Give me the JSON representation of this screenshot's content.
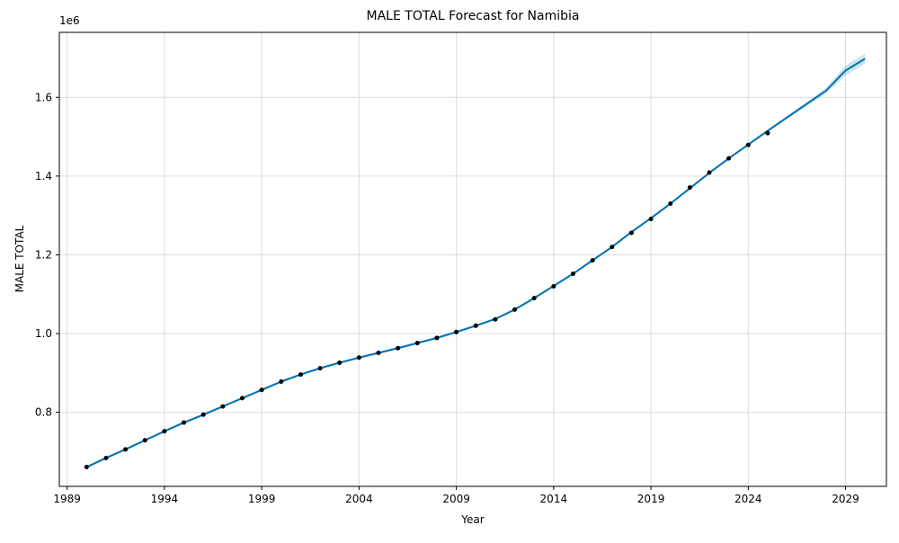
{
  "chart_data": {
    "type": "line",
    "title": "MALE TOTAL Forecast for Namibia",
    "xlabel": "Year",
    "ylabel": "MALE TOTAL",
    "y_offset_label": "1e6",
    "xlim": [
      1988.6,
      2031.1
    ],
    "ylim": [
      0.612,
      1.765
    ],
    "grid": true,
    "colors": {
      "forecast_line": "#0072b2",
      "uncertainty_band": "#0072b2",
      "observed_points": "#000000",
      "grid": "#dcdcdc"
    },
    "x_ticks": [
      {
        "value": 1989,
        "label": "1989"
      },
      {
        "value": 1994,
        "label": "1994"
      },
      {
        "value": 1999,
        "label": "1999"
      },
      {
        "value": 2004,
        "label": "2004"
      },
      {
        "value": 2009,
        "label": "2009"
      },
      {
        "value": 2014,
        "label": "2014"
      },
      {
        "value": 2019,
        "label": "2019"
      },
      {
        "value": 2024,
        "label": "2024"
      },
      {
        "value": 2029,
        "label": "2029"
      }
    ],
    "y_ticks": [
      {
        "value": 0.8,
        "label": "0.8"
      },
      {
        "value": 1.0,
        "label": "1.0"
      },
      {
        "value": 1.2,
        "label": "1.2"
      },
      {
        "value": 1.4,
        "label": "1.4"
      },
      {
        "value": 1.6,
        "label": "1.6"
      }
    ],
    "series": [
      {
        "role": "observed",
        "style": "points",
        "x": [
          1990,
          1991,
          1992,
          1993,
          1994,
          1995,
          1996,
          1997,
          1998,
          1999,
          2000,
          2001,
          2002,
          2003,
          2004,
          2005,
          2006,
          2007,
          2008,
          2009,
          2010,
          2011,
          2012,
          2013,
          2014,
          2015,
          2016,
          2017,
          2018,
          2019,
          2020,
          2021,
          2022,
          2023,
          2024,
          2025
        ],
        "y": [
          0.661,
          0.684,
          0.706,
          0.729,
          0.752,
          0.774,
          0.794,
          0.815,
          0.836,
          0.857,
          0.878,
          0.896,
          0.912,
          0.926,
          0.939,
          0.951,
          0.963,
          0.976,
          0.989,
          1.004,
          1.02,
          1.036,
          1.061,
          1.09,
          1.12,
          1.152,
          1.186,
          1.22,
          1.256,
          1.291,
          1.33,
          1.371,
          1.409,
          1.445,
          1.479,
          1.509
        ]
      },
      {
        "role": "forecast",
        "style": "line",
        "x": [
          1990,
          1991,
          1992,
          1993,
          1994,
          1995,
          1996,
          1997,
          1998,
          1999,
          2000,
          2001,
          2002,
          2003,
          2004,
          2005,
          2006,
          2007,
          2008,
          2009,
          2010,
          2011,
          2012,
          2013,
          2014,
          2015,
          2016,
          2017,
          2018,
          2019,
          2020,
          2021,
          2022,
          2023,
          2024,
          2025,
          2026,
          2027,
          2028,
          2029,
          2030
        ],
        "y": [
          0.661,
          0.684,
          0.706,
          0.729,
          0.752,
          0.774,
          0.794,
          0.815,
          0.836,
          0.857,
          0.878,
          0.896,
          0.912,
          0.926,
          0.939,
          0.951,
          0.963,
          0.976,
          0.989,
          1.004,
          1.02,
          1.037,
          1.061,
          1.09,
          1.121,
          1.152,
          1.186,
          1.22,
          1.258,
          1.293,
          1.33,
          1.369,
          1.408,
          1.445,
          1.48,
          1.515,
          1.549,
          1.583,
          1.617,
          1.668,
          1.698
        ],
        "lower": [
          0.658,
          0.681,
          0.703,
          0.726,
          0.749,
          0.771,
          0.791,
          0.812,
          0.833,
          0.854,
          0.875,
          0.893,
          0.909,
          0.923,
          0.936,
          0.948,
          0.96,
          0.973,
          0.986,
          1.001,
          1.017,
          1.034,
          1.058,
          1.087,
          1.118,
          1.149,
          1.183,
          1.217,
          1.255,
          1.29,
          1.327,
          1.366,
          1.405,
          1.442,
          1.477,
          1.512,
          1.545,
          1.578,
          1.61,
          1.655,
          1.685
        ],
        "upper": [
          0.664,
          0.687,
          0.709,
          0.732,
          0.755,
          0.777,
          0.797,
          0.818,
          0.839,
          0.86,
          0.881,
          0.899,
          0.915,
          0.929,
          0.942,
          0.954,
          0.966,
          0.979,
          0.992,
          1.007,
          1.023,
          1.04,
          1.064,
          1.093,
          1.124,
          1.155,
          1.189,
          1.223,
          1.261,
          1.296,
          1.333,
          1.372,
          1.411,
          1.448,
          1.483,
          1.518,
          1.553,
          1.588,
          1.624,
          1.681,
          1.711
        ]
      }
    ]
  }
}
